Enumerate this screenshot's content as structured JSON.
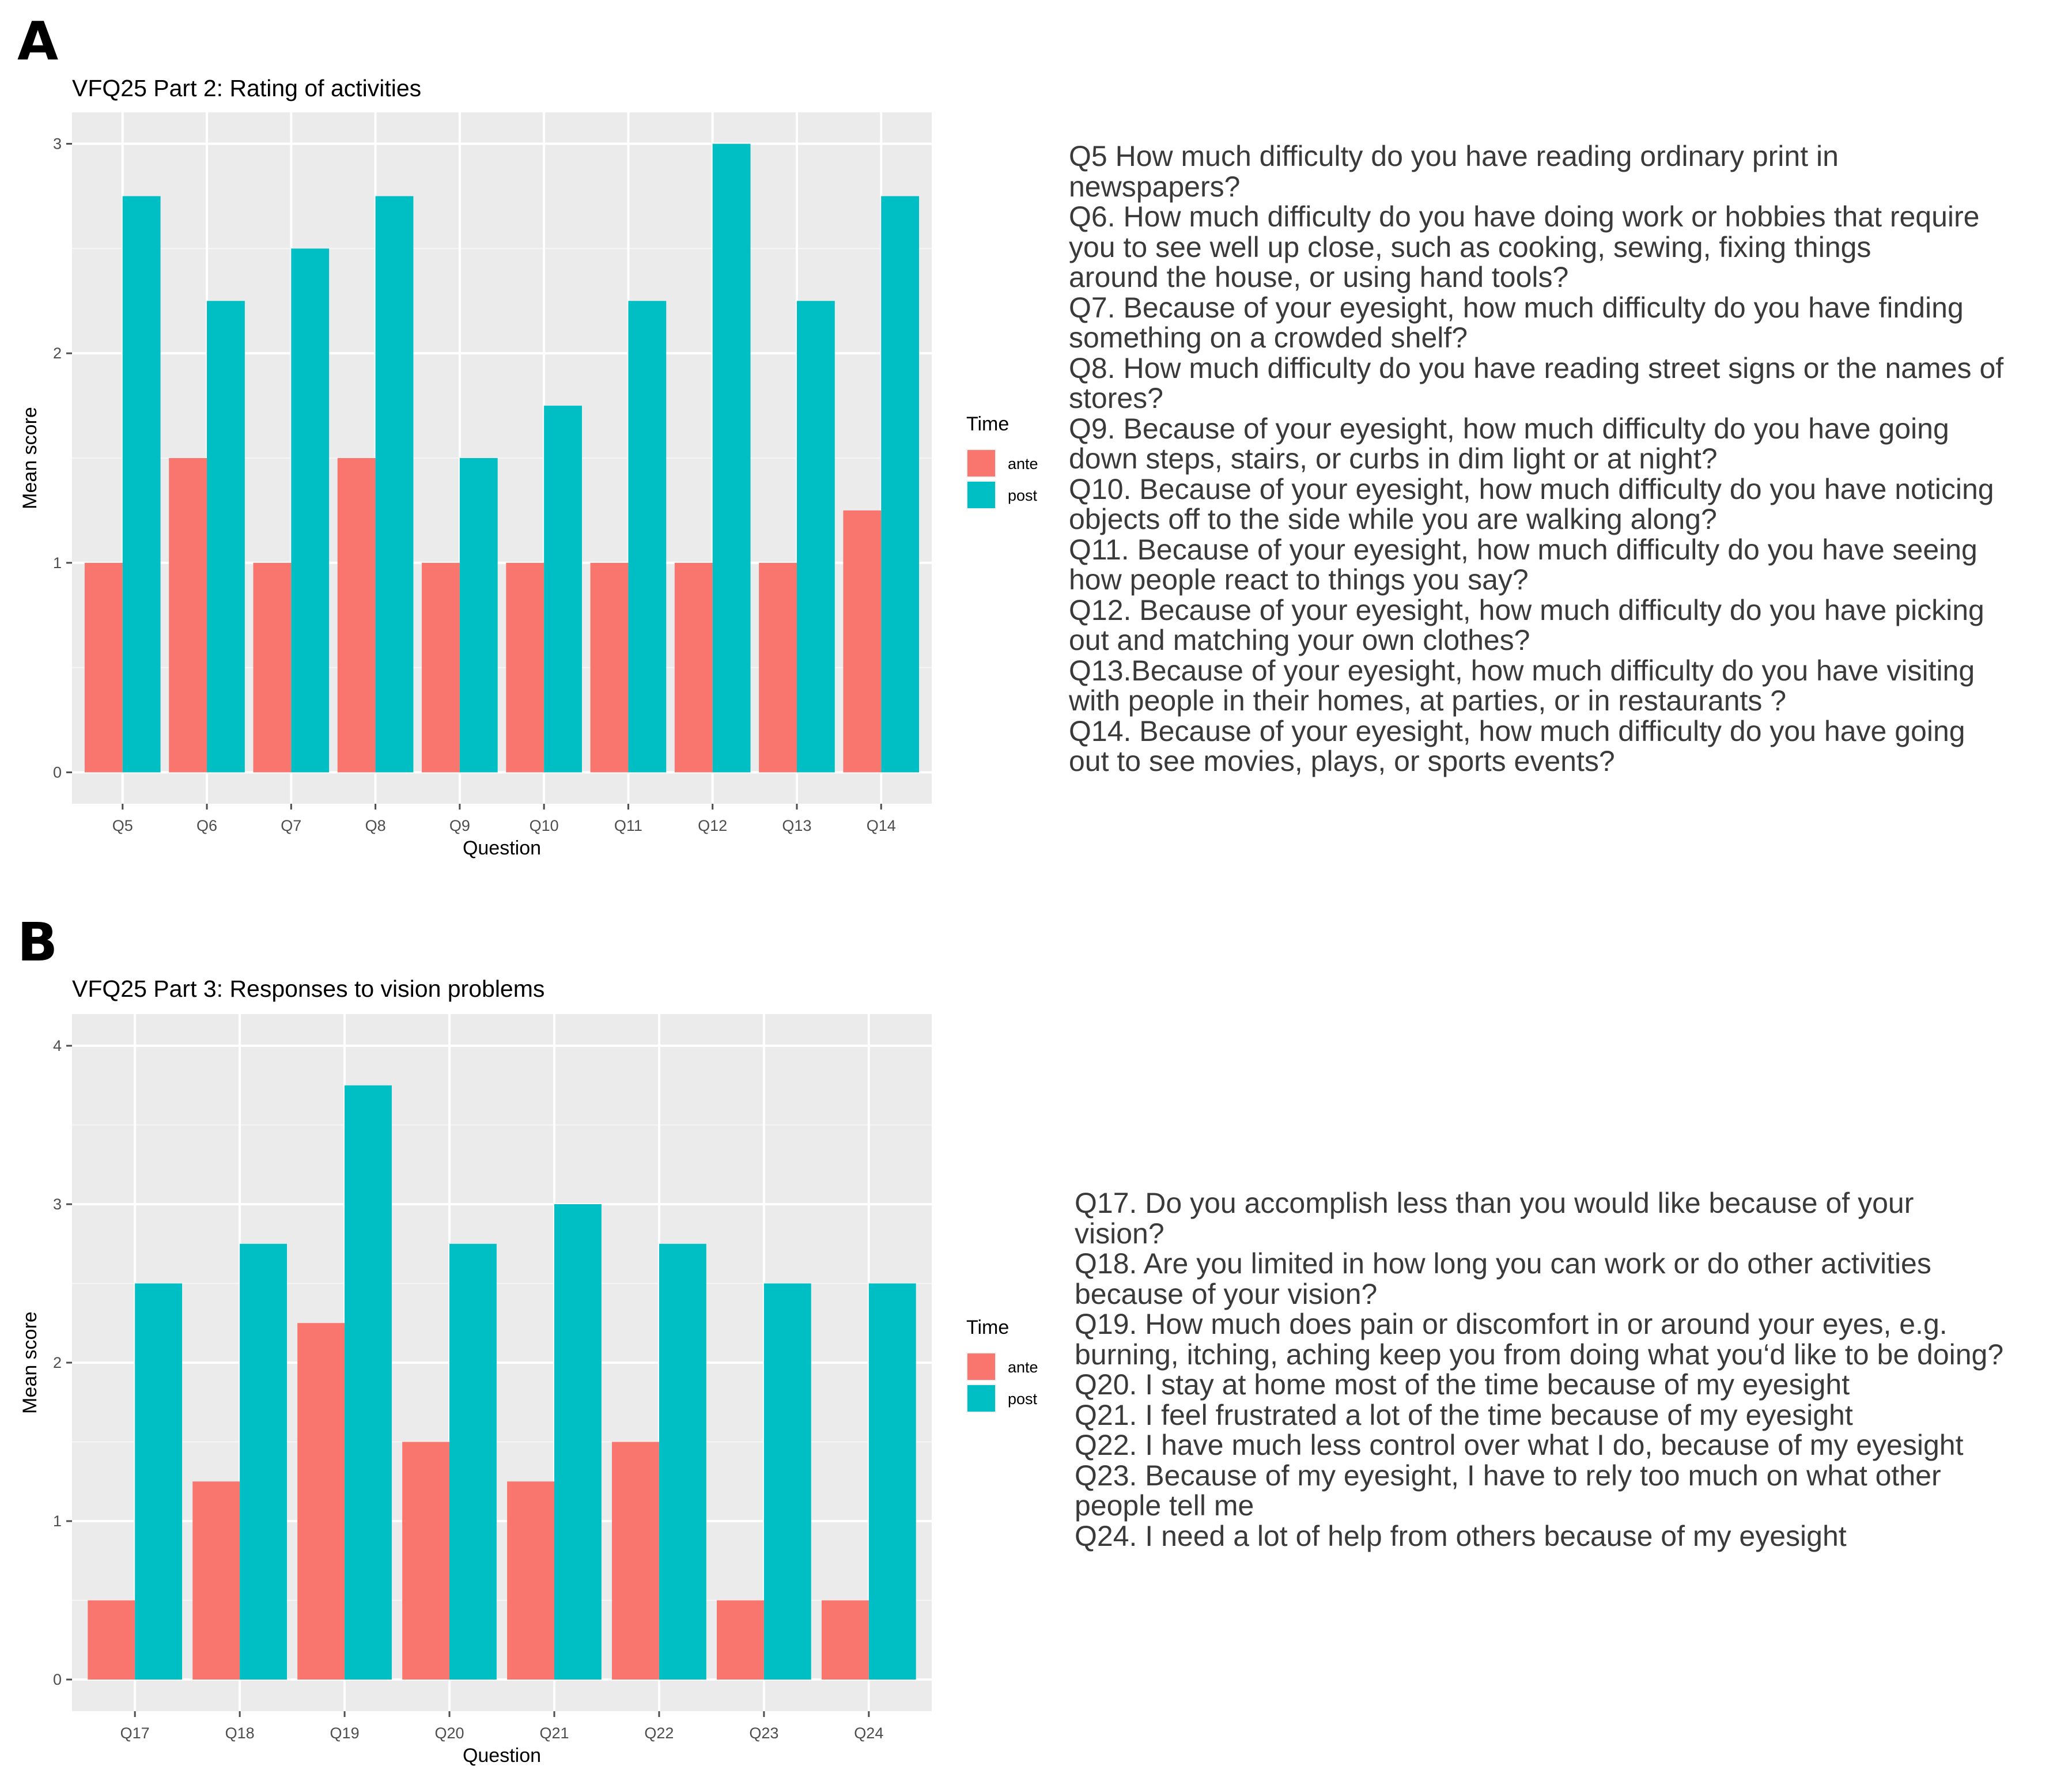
{
  "panels": {
    "a_label": "A",
    "b_label": "B"
  },
  "chart_data": [
    {
      "type": "bar",
      "title": "VFQ25 Part 2: Rating of activities",
      "xlabel": "Question",
      "ylabel": "Mean score",
      "categories": [
        "Q5",
        "Q6",
        "Q7",
        "Q8",
        "Q9",
        "Q10",
        "Q11",
        "Q12",
        "Q13",
        "Q14"
      ],
      "series": [
        {
          "name": "ante",
          "color": "#F8766D",
          "values": [
            1,
            1.5,
            1,
            1.5,
            1,
            1,
            1,
            1,
            1,
            1.25
          ]
        },
        {
          "name": "post",
          "color": "#00BFC4",
          "values": [
            2.75,
            2.25,
            2.5,
            2.75,
            1.5,
            1.75,
            2.25,
            3,
            2.25,
            2.75
          ]
        }
      ],
      "ylim": [
        -0.15,
        3.15
      ],
      "yticks": [
        0,
        1,
        2,
        3
      ],
      "legend_title": "Time",
      "legend_position": "right",
      "grid": true
    },
    {
      "type": "bar",
      "title": "VFQ25 Part 3: Responses to vision problems",
      "xlabel": "Question",
      "ylabel": "Mean score",
      "categories": [
        "Q17",
        "Q18",
        "Q19",
        "Q20",
        "Q21",
        "Q22",
        "Q23",
        "Q24"
      ],
      "series": [
        {
          "name": "ante",
          "color": "#F8766D",
          "values": [
            0.5,
            1.25,
            2.25,
            1.5,
            1.25,
            1.5,
            0.5,
            0.5
          ]
        },
        {
          "name": "post",
          "color": "#00BFC4",
          "values": [
            2.5,
            2.75,
            3.75,
            2.75,
            3,
            2.75,
            2.5,
            2.5
          ]
        }
      ],
      "ylim": [
        -0.2,
        4.2
      ],
      "yticks": [
        0,
        1,
        2,
        3,
        4
      ],
      "legend_title": "Time",
      "legend_position": "right",
      "grid": true
    }
  ],
  "questions_a": [
    "Q5 How much difficulty do you have reading ordinary print in",
    "newspapers?",
    "Q6. How much difficulty do you have doing work or hobbies that require",
    "you to see well up close, such as cooking, sewing, fixing things",
    "around the house, or using hand tools?",
    "Q7. Because of your eyesight, how much difficulty do you have finding",
    "something on a crowded shelf?",
    "Q8. How much difficulty do you have reading street signs or the names of",
    "stores?",
    "Q9. Because of your eyesight, how much difficulty do you have going",
    "down steps, stairs, or curbs in dim light or at night?",
    "Q10. Because of your eyesight, how much difficulty do you have noticing",
    "objects off to the side while you are walking along?",
    "Q11. Because of your eyesight, how much difficulty do you have seeing",
    "how people react to things you say?",
    "Q12. Because of your eyesight, how much difficulty do you have picking",
    "out and matching your own clothes?",
    "Q13.Because of your eyesight, how much difficulty do you have visiting",
    "with people in their homes, at parties, or in restaurants ?",
    "Q14. Because of your eyesight, how much difficulty do you have going",
    "out to see movies, plays, or sports events?"
  ],
  "questions_b": [
    "Q17. Do you accomplish less than you would like because of your",
    "vision?",
    "Q18. Are you limited in how long you can work or do other activities",
    "because of your vision?",
    "Q19. How much does pain or discomfort in or around your eyes, e.g.",
    "burning, itching, aching keep you from doing what you‘d like to be doing?",
    "Q20. I stay at home most of the time because of my eyesight",
    "Q21. I feel frustrated a lot of the time because of my eyesight",
    "Q22. I have much less control over what I do, because of my eyesight",
    "Q23. Because of my eyesight, I have to rely too much on what other",
    "people tell me",
    "Q24. I need a lot of help from others because of my eyesight"
  ]
}
